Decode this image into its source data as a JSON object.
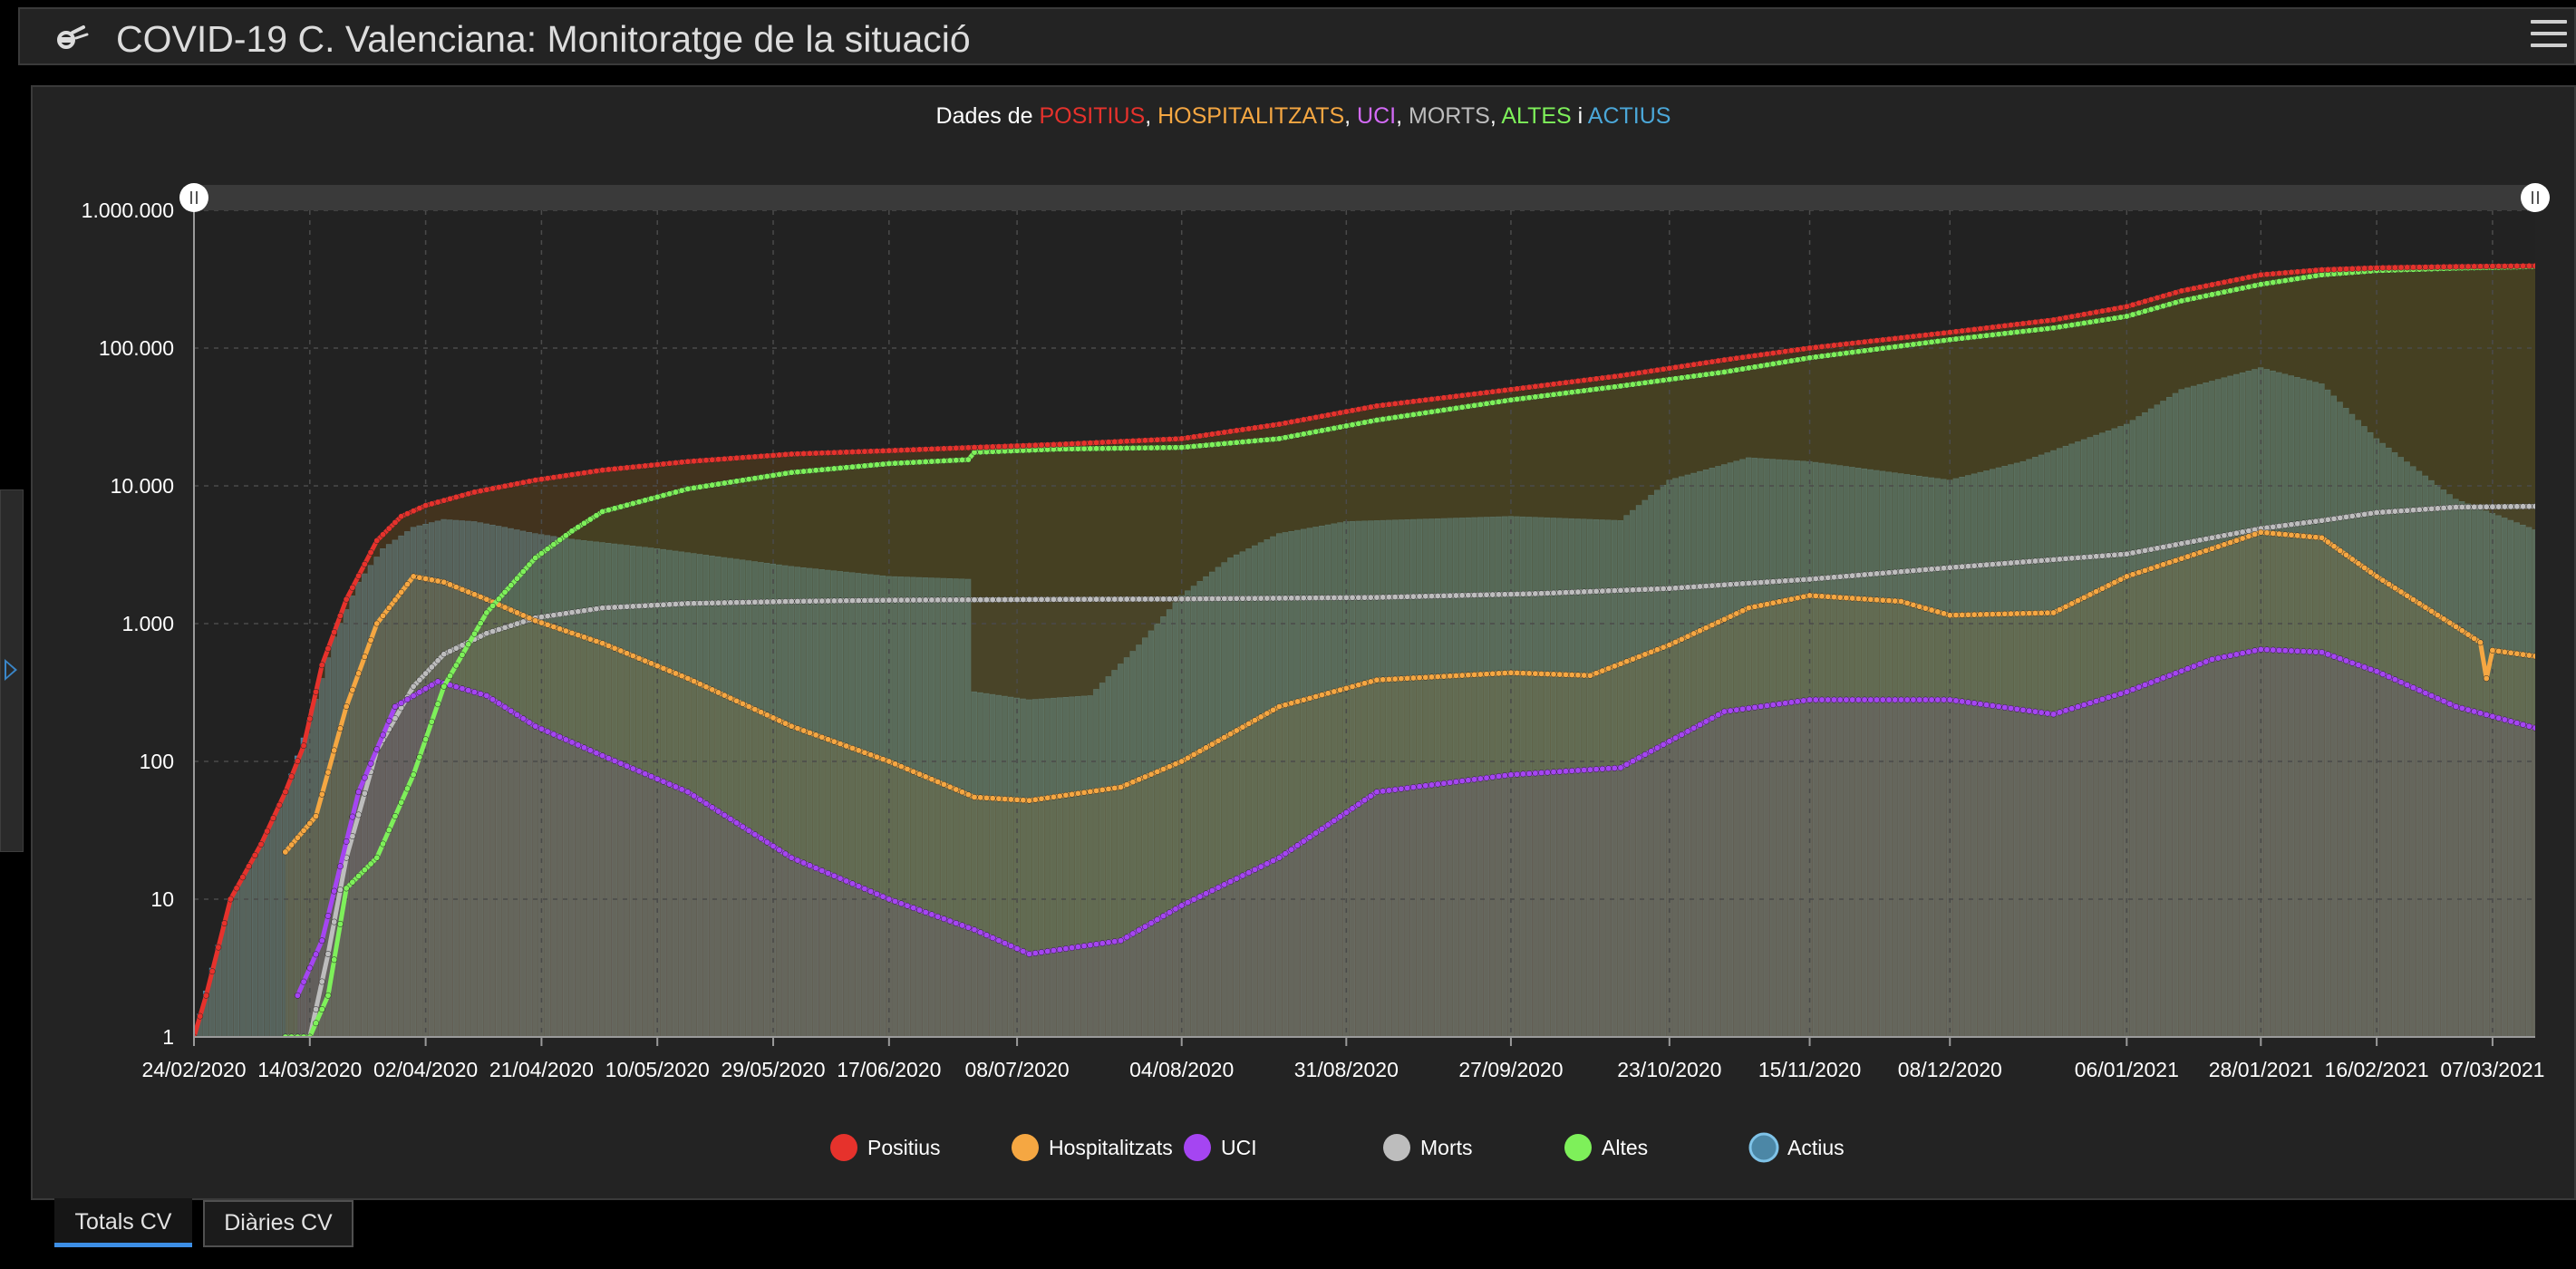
{
  "header": {
    "title": "COVID-19 C. Valenciana: Monitoratge de la situació",
    "logo_icon": "virus-shield-icon",
    "menu_icon": "hamburger-menu-icon"
  },
  "side_panel": {
    "toggle_icon": "chevron-right-icon"
  },
  "chart_title": {
    "prefix": "Dades de ",
    "parts": [
      {
        "text": "POSITIUS",
        "color": "#e6322c"
      },
      {
        "text": ", ",
        "color": "#ffffff"
      },
      {
        "text": "HOSPITALITZATS",
        "color": "#f5a742"
      },
      {
        "text": ", ",
        "color": "#ffffff"
      },
      {
        "text": "UCI",
        "color": "#d36af7"
      },
      {
        "text": ", ",
        "color": "#ffffff"
      },
      {
        "text": "MORTS",
        "color": "#bdbdbd"
      },
      {
        "text": ", ",
        "color": "#ffffff"
      },
      {
        "text": "ALTES",
        "color": "#7ef05a"
      },
      {
        "text": " i ",
        "color": "#ffffff"
      },
      {
        "text": "ACTIUS",
        "color": "#4ba7d8"
      }
    ]
  },
  "chart_data": {
    "type": "line",
    "yscale": "log",
    "ylim": [
      1,
      1000000
    ],
    "yticks": [
      {
        "value": 1,
        "label": "1"
      },
      {
        "value": 10,
        "label": "10"
      },
      {
        "value": 100,
        "label": "100"
      },
      {
        "value": 1000,
        "label": "1.000"
      },
      {
        "value": 10000,
        "label": "10.000"
      },
      {
        "value": 100000,
        "label": "100.000"
      },
      {
        "value": 1000000,
        "label": "1.000.000"
      }
    ],
    "xlim": [
      "2020-02-24",
      "2021-03-14"
    ],
    "xticks": [
      "24/02/2020",
      "14/03/2020",
      "02/04/2020",
      "21/04/2020",
      "10/05/2020",
      "29/05/2020",
      "17/06/2020",
      "08/07/2020",
      "04/08/2020",
      "31/08/2020",
      "27/09/2020",
      "23/10/2020",
      "15/11/2020",
      "08/12/2020",
      "06/01/2021",
      "28/01/2021",
      "16/02/2021",
      "07/03/2021"
    ],
    "xtick_days": [
      0,
      19,
      38,
      57,
      76,
      95,
      114,
      135,
      162,
      189,
      216,
      242,
      265,
      288,
      317,
      339,
      358,
      377
    ],
    "grid": true,
    "legend_position": "bottom",
    "series": [
      {
        "name": "Positius",
        "color": "#e6322c",
        "kind": "line",
        "x": [
          "2020-02-24",
          "2020-02-26",
          "2020-03-01",
          "2020-03-06",
          "2020-03-10",
          "2020-03-13",
          "2020-03-16",
          "2020-03-20",
          "2020-03-25",
          "2020-03-29",
          "2020-04-02",
          "2020-04-10",
          "2020-04-20",
          "2020-05-01",
          "2020-05-15",
          "2020-06-01",
          "2020-06-17",
          "2020-07-01",
          "2020-07-15",
          "2020-08-04",
          "2020-08-20",
          "2020-09-05",
          "2020-09-27",
          "2020-10-15",
          "2020-11-01",
          "2020-11-15",
          "2020-12-08",
          "2020-12-25",
          "2021-01-06",
          "2021-01-15",
          "2021-01-28",
          "2021-02-07",
          "2021-02-16",
          "2021-03-01",
          "2021-03-14"
        ],
        "y": [
          1,
          2,
          10,
          25,
          60,
          130,
          500,
          1500,
          4000,
          6000,
          7200,
          9000,
          11000,
          13000,
          15000,
          17000,
          18000,
          19000,
          20000,
          22000,
          28000,
          38000,
          50000,
          63000,
          82000,
          100000,
          130000,
          160000,
          200000,
          260000,
          340000,
          370000,
          382000,
          390000,
          395000
        ]
      },
      {
        "name": "Hospitalitzats",
        "color": "#f5a742",
        "kind": "line",
        "x": [
          "2020-03-10",
          "2020-03-15",
          "2020-03-20",
          "2020-03-25",
          "2020-03-31",
          "2020-04-05",
          "2020-04-12",
          "2020-04-20",
          "2020-05-01",
          "2020-05-15",
          "2020-06-01",
          "2020-06-17",
          "2020-07-01",
          "2020-07-10",
          "2020-07-25",
          "2020-08-04",
          "2020-08-20",
          "2020-09-05",
          "2020-09-27",
          "2020-10-10",
          "2020-10-23",
          "2020-11-05",
          "2020-11-15",
          "2020-11-30",
          "2020-12-08",
          "2020-12-25",
          "2021-01-06",
          "2021-01-20",
          "2021-01-28",
          "2021-02-07",
          "2021-02-16",
          "2021-03-01",
          "2021-03-05",
          "2021-03-06",
          "2021-03-07",
          "2021-03-14"
        ],
        "y": [
          22,
          40,
          250,
          1000,
          2200,
          2000,
          1500,
          1050,
          720,
          400,
          180,
          100,
          55,
          52,
          65,
          100,
          250,
          390,
          440,
          420,
          700,
          1300,
          1600,
          1450,
          1150,
          1200,
          2200,
          3500,
          4600,
          4200,
          2200,
          950,
          730,
          400,
          640,
          580
        ]
      },
      {
        "name": "UCI",
        "color": "#a545f2",
        "kind": "line",
        "x": [
          "2020-03-12",
          "2020-03-16",
          "2020-03-22",
          "2020-03-28",
          "2020-04-04",
          "2020-04-12",
          "2020-04-20",
          "2020-05-01",
          "2020-05-15",
          "2020-06-01",
          "2020-06-17",
          "2020-07-01",
          "2020-07-10",
          "2020-07-25",
          "2020-08-04",
          "2020-08-20",
          "2020-09-05",
          "2020-09-27",
          "2020-10-15",
          "2020-11-01",
          "2020-11-15",
          "2020-12-08",
          "2020-12-25",
          "2021-01-06",
          "2021-01-20",
          "2021-01-28",
          "2021-02-07",
          "2021-02-16",
          "2021-03-01",
          "2021-03-14"
        ],
        "y": [
          2,
          5,
          60,
          250,
          380,
          300,
          180,
          110,
          60,
          20,
          10,
          6,
          4,
          5,
          9,
          20,
          60,
          80,
          90,
          230,
          280,
          280,
          220,
          320,
          550,
          650,
          620,
          450,
          250,
          175
        ]
      },
      {
        "name": "Morts",
        "color": "#bdbdbd",
        "kind": "line",
        "x": [
          "2020-03-10",
          "2020-03-14",
          "2020-03-17",
          "2020-03-20",
          "2020-03-25",
          "2020-03-31",
          "2020-04-05",
          "2020-04-12",
          "2020-04-20",
          "2020-05-01",
          "2020-05-15",
          "2020-06-01",
          "2020-06-17",
          "2020-07-15",
          "2020-08-04",
          "2020-09-05",
          "2020-10-01",
          "2020-10-23",
          "2020-11-15",
          "2020-12-08",
          "2021-01-06",
          "2021-01-28",
          "2021-02-07",
          "2021-02-16",
          "2021-03-01",
          "2021-03-14"
        ],
        "y": [
          1,
          1,
          4,
          20,
          120,
          350,
          600,
          850,
          1100,
          1300,
          1400,
          1450,
          1480,
          1500,
          1510,
          1550,
          1650,
          1800,
          2100,
          2550,
          3200,
          4900,
          5600,
          6400,
          7000,
          7100
        ]
      },
      {
        "name": "Altes",
        "color": "#7ef05a",
        "kind": "line",
        "x": [
          "2020-03-10",
          "2020-03-14",
          "2020-03-17",
          "2020-03-20",
          "2020-03-25",
          "2020-03-31",
          "2020-04-05",
          "2020-04-12",
          "2020-04-20",
          "2020-04-26",
          "2020-05-01",
          "2020-05-15",
          "2020-06-01",
          "2020-06-17",
          "2020-06-30",
          "2020-07-01",
          "2020-07-15",
          "2020-08-04",
          "2020-08-20",
          "2020-09-05",
          "2020-09-27",
          "2020-10-15",
          "2020-11-01",
          "2020-11-15",
          "2020-12-08",
          "2020-12-25",
          "2021-01-06",
          "2021-01-15",
          "2021-01-28",
          "2021-02-07",
          "2021-02-16",
          "2021-03-01",
          "2021-03-14"
        ],
        "y": [
          1,
          1,
          2,
          12,
          20,
          80,
          350,
          1200,
          3000,
          4700,
          6500,
          9500,
          12500,
          14500,
          15500,
          17500,
          18500,
          19000,
          22000,
          30000,
          42000,
          53000,
          67000,
          85000,
          115000,
          140000,
          170000,
          220000,
          290000,
          340000,
          365000,
          380000,
          390000
        ]
      },
      {
        "name": "Actius",
        "color": "#4ba7d8",
        "kind": "bar",
        "x": [
          "2020-02-24",
          "2020-03-01",
          "2020-03-06",
          "2020-03-10",
          "2020-03-14",
          "2020-03-18",
          "2020-03-22",
          "2020-03-26",
          "2020-03-31",
          "2020-04-05",
          "2020-04-10",
          "2020-04-15",
          "2020-04-20",
          "2020-04-26",
          "2020-05-10",
          "2020-06-01",
          "2020-06-17",
          "2020-06-30",
          "2020-07-01",
          "2020-07-10",
          "2020-07-20",
          "2020-07-28",
          "2020-08-04",
          "2020-08-12",
          "2020-08-20",
          "2020-08-31",
          "2020-09-27",
          "2020-10-15",
          "2020-10-23",
          "2020-11-05",
          "2020-11-15",
          "2020-12-08",
          "2020-12-20",
          "2021-01-06",
          "2021-01-15",
          "2021-01-28",
          "2021-02-07",
          "2021-02-16",
          "2021-03-01",
          "2021-03-14"
        ],
        "y": [
          1,
          10,
          25,
          60,
          200,
          800,
          2000,
          3500,
          5000,
          5700,
          5500,
          5000,
          4500,
          4100,
          3500,
          2600,
          2200,
          2100,
          320,
          280,
          300,
          700,
          1600,
          3000,
          4500,
          5500,
          6000,
          5600,
          11000,
          16000,
          15000,
          11000,
          15000,
          28000,
          50000,
          72000,
          55000,
          22000,
          8000,
          4800
        ]
      }
    ]
  }
}
